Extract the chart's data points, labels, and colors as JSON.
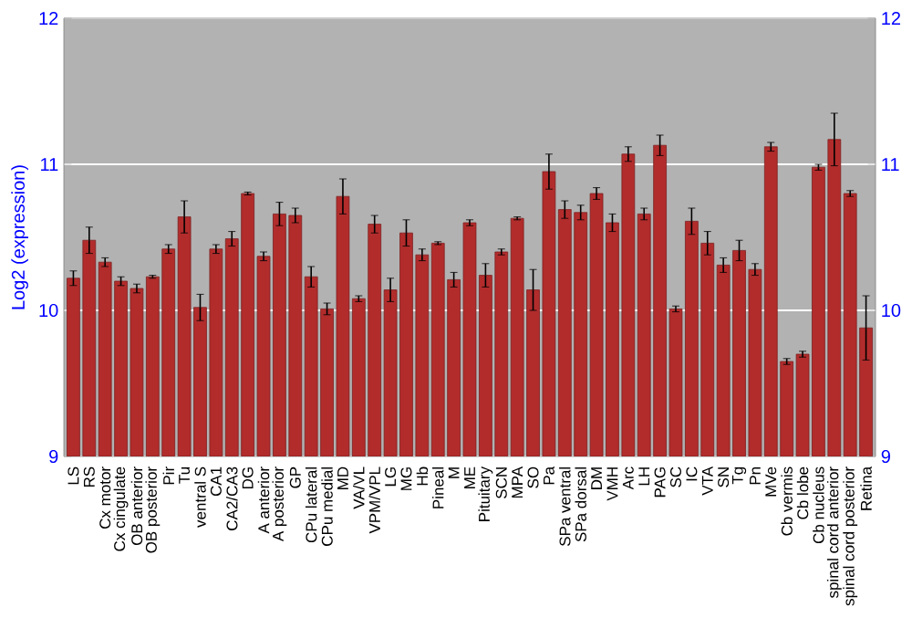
{
  "chart_data": {
    "type": "bar",
    "ylabel": "Log2 (expression)",
    "categories": [
      "LS",
      "RS",
      "Cx motor",
      "Cx cingulate",
      "OB anterior",
      "OB posterior",
      "Pir",
      "Tu",
      "ventral S",
      "CA1",
      "CA2/CA3",
      "DG",
      "A anterior",
      "A posterior",
      "GP",
      "CPu lateral",
      "CPu medial",
      "MD",
      "VA/VL",
      "VPM/VPL",
      "LG",
      "MG",
      "Hb",
      "Pineal",
      "M",
      "ME",
      "Pituitary",
      "SCN",
      "MPA",
      "SO",
      "Pa",
      "SPa ventral",
      "SPa dorsal",
      "DM",
      "VMH",
      "Arc",
      "LH",
      "PAG",
      "SC",
      "IC",
      "VTA",
      "SN",
      "Tg",
      "Pn",
      "MVe",
      "Cb vermis",
      "Cb lobe",
      "Cb nucleus",
      "spinal cord anterior",
      "spinal cord posterior",
      "Retina"
    ],
    "values": [
      10.22,
      10.48,
      10.33,
      10.2,
      10.15,
      10.23,
      10.42,
      10.64,
      10.02,
      10.42,
      10.49,
      10.8,
      10.37,
      10.66,
      10.65,
      10.23,
      10.01,
      10.78,
      10.08,
      10.59,
      10.14,
      10.53,
      10.38,
      10.46,
      10.21,
      10.6,
      10.24,
      10.4,
      10.63,
      10.14,
      10.95,
      10.69,
      10.67,
      10.8,
      10.6,
      11.07,
      10.66,
      11.13,
      10.01,
      10.61,
      10.46,
      10.31,
      10.41,
      10.28,
      11.12,
      9.65,
      9.7,
      10.98,
      11.17,
      10.8,
      9.88
    ],
    "errors": [
      0.05,
      0.09,
      0.03,
      0.03,
      0.03,
      0.01,
      0.03,
      0.11,
      0.09,
      0.03,
      0.05,
      0.01,
      0.03,
      0.08,
      0.05,
      0.07,
      0.04,
      0.12,
      0.02,
      0.06,
      0.08,
      0.09,
      0.04,
      0.01,
      0.05,
      0.02,
      0.08,
      0.02,
      0.01,
      0.14,
      0.12,
      0.06,
      0.05,
      0.04,
      0.06,
      0.05,
      0.04,
      0.07,
      0.02,
      0.09,
      0.08,
      0.05,
      0.07,
      0.04,
      0.03,
      0.02,
      0.02,
      0.02,
      0.18,
      0.02,
      0.22
    ],
    "color": "#b22c2c",
    "ylim": [
      9,
      12
    ],
    "yticks": [
      9,
      10,
      11,
      12
    ],
    "y2lim": [
      9,
      12
    ],
    "y2ticks": [
      9,
      10,
      11,
      12
    ],
    "grid": "y"
  }
}
